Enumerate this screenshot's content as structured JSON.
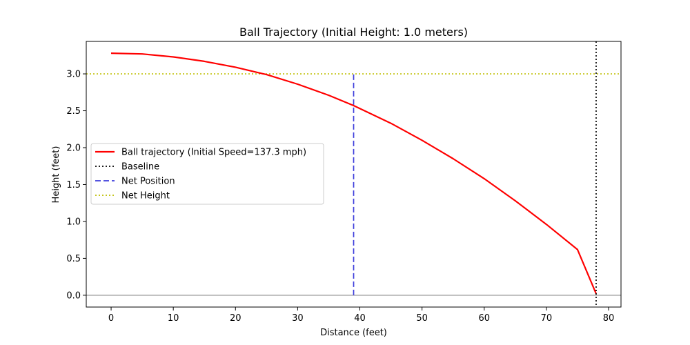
{
  "chart_data": {
    "type": "line",
    "title": "Ball Trajectory (Initial Height: 1.0 meters)",
    "xlabel": "Distance (feet)",
    "ylabel": "Height (feet)",
    "xlim": [
      -4,
      82
    ],
    "ylim": [
      -0.16,
      3.44
    ],
    "xticks": [
      0,
      10,
      20,
      30,
      40,
      50,
      60,
      70,
      80
    ],
    "yticks": [
      0.0,
      0.5,
      1.0,
      1.5,
      2.0,
      2.5,
      3.0
    ],
    "grid": false,
    "legend_position": "center-left",
    "series": [
      {
        "name": "Ball trajectory (Initial Speed=137.3 mph)",
        "kind": "line",
        "color": "#ff0000",
        "x": [
          0,
          5,
          10,
          15,
          20,
          25,
          30,
          35,
          39,
          45,
          50,
          55,
          60,
          65,
          70,
          75,
          78
        ],
        "y": [
          3.28,
          3.27,
          3.23,
          3.17,
          3.09,
          2.99,
          2.86,
          2.71,
          2.57,
          2.33,
          2.1,
          1.85,
          1.58,
          1.28,
          0.96,
          0.62,
          0.02
        ]
      },
      {
        "name": "Baseline",
        "kind": "vline",
        "x": 78,
        "style": "dotted",
        "color": "#000000"
      },
      {
        "name": "Net Position",
        "kind": "vsegment",
        "x": 39,
        "y_range": [
          0,
          3.0
        ],
        "style": "dashed",
        "color": "#3c3cdc"
      },
      {
        "name": "Net Height",
        "kind": "hline",
        "y": 3.0,
        "style": "dotted",
        "color": "#bfbf00"
      },
      {
        "kind": "hline",
        "y": 0.0,
        "style": "solid",
        "color": "#a6a6a6"
      }
    ]
  }
}
